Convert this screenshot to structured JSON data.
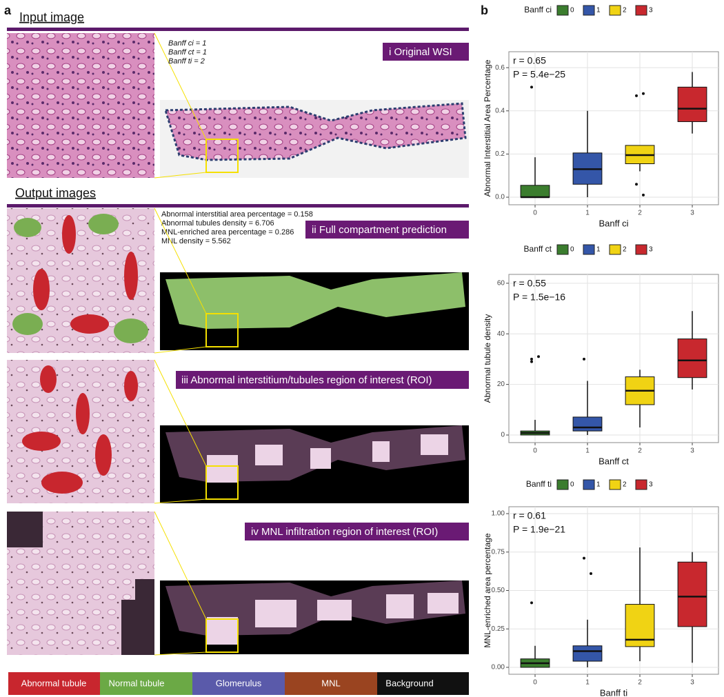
{
  "panel_a": {
    "label": "a",
    "input_title": "Input image",
    "output_title": "Output images",
    "scores": [
      "Banff ci = 1",
      "Banff ct = 1",
      "Banff ti = 2"
    ],
    "metrics": [
      "Abnormal interstitial area percentage = 0.158",
      "Abnormal tubules density = 6.706",
      "MNL-enriched area percentage = 0.286",
      "MNL density = 5.562"
    ],
    "captions": [
      "i Original WSI",
      "ii Full compartment prediction",
      "iii Abnormal interstitium/tubules region of interest (ROI)",
      "iv MNL infiltration region of interest (ROI)"
    ],
    "legend": [
      "Abnormal tubule",
      "Normal tubule",
      "Glomerulus",
      "MNL",
      "Background"
    ]
  },
  "panel_b": {
    "label": "b"
  },
  "chart_data": [
    {
      "type": "box",
      "legend_title": "Banff ci",
      "categories": [
        "0",
        "1",
        "2",
        "3"
      ],
      "colors": [
        "#3b7d2e",
        "#3456a8",
        "#f0d314",
        "#c8282e"
      ],
      "boxes": [
        {
          "min": 0,
          "q1": 0,
          "median": 0,
          "q3": 0.055,
          "max": 0.185,
          "outliers": [
            0.51
          ]
        },
        {
          "min": 0,
          "q1": 0.06,
          "median": 0.13,
          "q3": 0.205,
          "max": 0.4,
          "outliers": []
        },
        {
          "min": 0.12,
          "q1": 0.155,
          "median": 0.195,
          "q3": 0.24,
          "max": 0.24,
          "outliers": [
            0.47,
            0.48,
            0.06,
            0.01
          ]
        },
        {
          "min": 0.295,
          "q1": 0.35,
          "median": 0.41,
          "q3": 0.51,
          "max": 0.58,
          "outliers": []
        }
      ],
      "annotations": [
        "r = 0.65",
        "P = 5.4e−25"
      ],
      "xlabel": "Banff ci",
      "ylabel": "Abnormal Interstitial Area Percentage",
      "ylim": [
        -0.035,
        0.674
      ],
      "yticks": [
        {
          "value": 0,
          "label": "0.0"
        },
        {
          "value": 0.2,
          "label": "0.2"
        },
        {
          "value": 0.4,
          "label": "0.4"
        },
        {
          "value": 0.6,
          "label": "0.6"
        }
      ],
      "grid": true
    },
    {
      "type": "box",
      "legend_title": "Banff ct",
      "categories": [
        "0",
        "1",
        "2",
        "3"
      ],
      "colors": [
        "#3b7d2e",
        "#3456a8",
        "#f0d314",
        "#c8282e"
      ],
      "boxes": [
        {
          "min": 0,
          "q1": 0,
          "median": 0.8,
          "q3": 1.6,
          "max": 6,
          "outliers": [
            30,
            31,
            29
          ]
        },
        {
          "min": 0,
          "q1": 1.6,
          "median": 3,
          "q3": 7.1,
          "max": 21.4,
          "outliers": [
            30
          ]
        },
        {
          "min": 3,
          "q1": 12,
          "median": 17.5,
          "q3": 23,
          "max": 25.8,
          "outliers": []
        },
        {
          "min": 18,
          "q1": 22.7,
          "median": 29.5,
          "q3": 38,
          "max": 49,
          "outliers": []
        }
      ],
      "annotations": [
        "r = 0.55",
        "P = 1.5e−16"
      ],
      "xlabel": "Banff ct",
      "ylabel": "Abnormal tubule density",
      "ylim": [
        -3,
        63.5
      ],
      "yticks": [
        0,
        20,
        40,
        60
      ],
      "grid": true
    },
    {
      "type": "box",
      "legend_title": "Banff ti",
      "categories": [
        "0",
        "1",
        "2",
        "3"
      ],
      "colors": [
        "#3b7d2e",
        "#3456a8",
        "#f0d314",
        "#c8282e"
      ],
      "boxes": [
        {
          "min": 0,
          "q1": 0,
          "median": 0.027,
          "q3": 0.055,
          "max": 0.14,
          "outliers": [
            0.42
          ]
        },
        {
          "min": 0,
          "q1": 0.04,
          "median": 0.105,
          "q3": 0.14,
          "max": 0.31,
          "outliers": [
            0.71,
            0.61
          ]
        },
        {
          "min": 0.04,
          "q1": 0.135,
          "median": 0.18,
          "q3": 0.41,
          "max": 0.78,
          "outliers": []
        },
        {
          "min": 0.03,
          "q1": 0.265,
          "median": 0.46,
          "q3": 0.685,
          "max": 0.75,
          "outliers": []
        }
      ],
      "annotations": [
        "r = 0.61",
        "P = 1.9e−21"
      ],
      "xlabel": "Banff ti",
      "ylabel": "MNL-enriched  area percentage",
      "ylim": [
        -0.045,
        1.045
      ],
      "yticks": [
        {
          "value": 0,
          "label": "0.00"
        },
        {
          "value": 0.25,
          "label": "0.25"
        },
        {
          "value": 0.5,
          "label": "0.50"
        },
        {
          "value": 0.75,
          "label": "0.75"
        },
        {
          "value": 1,
          "label": "1.00"
        }
      ],
      "grid": true
    }
  ]
}
